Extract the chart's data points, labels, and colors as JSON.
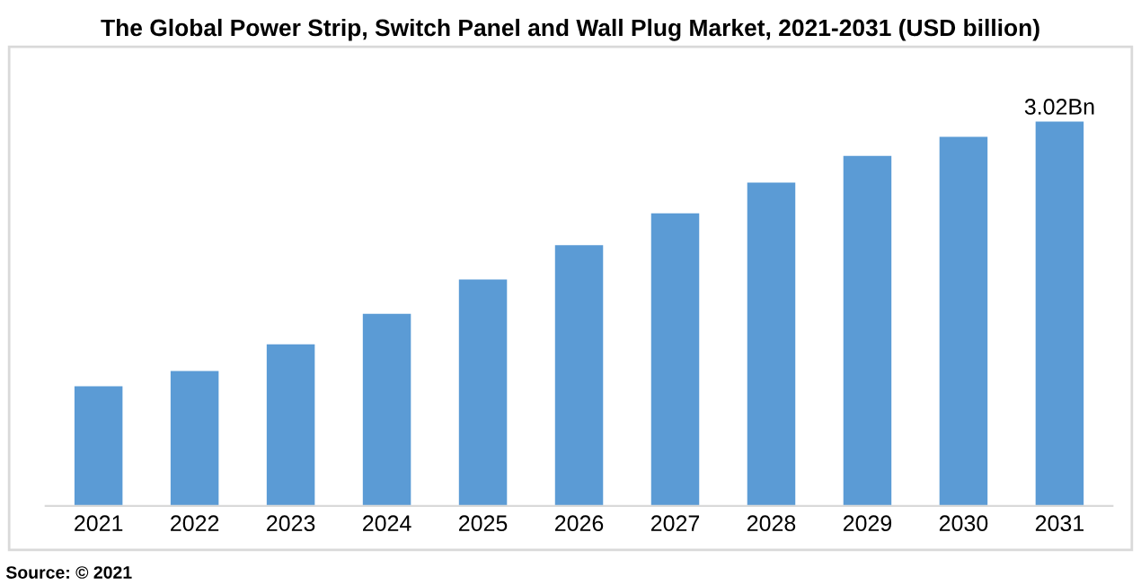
{
  "chart_data": {
    "type": "bar",
    "title": "The Global Power Strip, Switch Panel and Wall Plug Market, 2021-2031 (USD billion)",
    "categories": [
      "2021",
      "2022",
      "2023",
      "2024",
      "2025",
      "2026",
      "2027",
      "2028",
      "2029",
      "2030",
      "2031"
    ],
    "values": [
      0.94,
      1.06,
      1.27,
      1.51,
      1.78,
      2.05,
      2.3,
      2.54,
      2.75,
      2.9,
      3.02
    ],
    "value_labels": [
      null,
      null,
      null,
      null,
      null,
      null,
      null,
      null,
      null,
      null,
      "3.02Bn"
    ],
    "color": "#5b9bd5",
    "grid": false,
    "legend": false,
    "annotations": [
      "Source: © 2021"
    ]
  }
}
